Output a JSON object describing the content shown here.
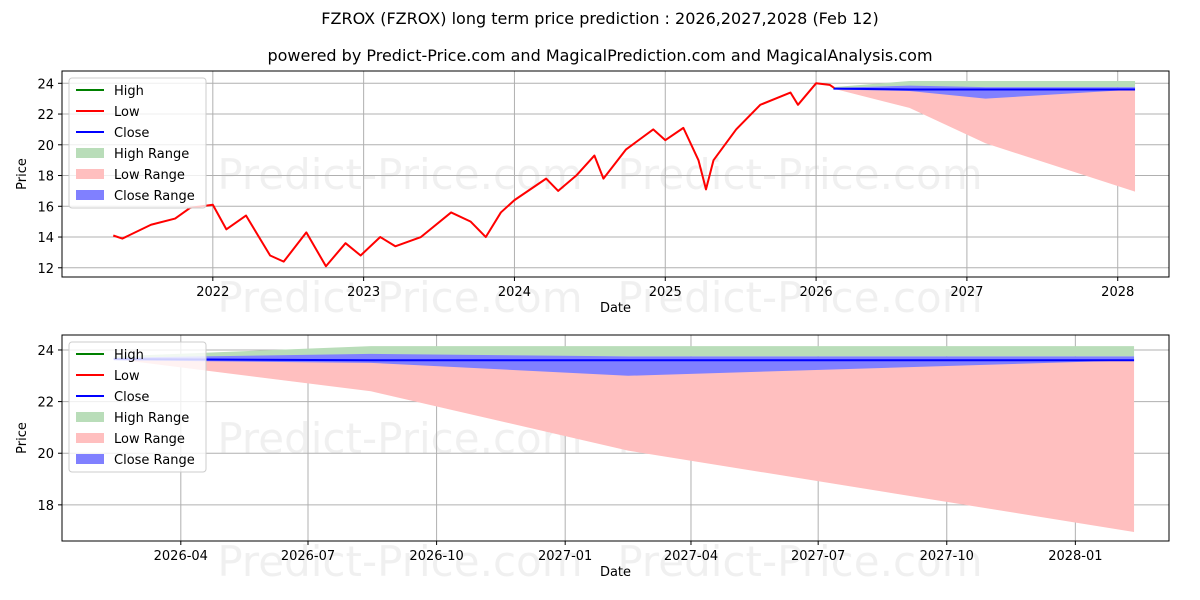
{
  "title": "FZROX (FZROX) long term price prediction : 2026,2027,2028 (Feb 12)",
  "subtitle": "powered by Predict-Price.com and MagicalPrediction.com and MagicalAnalysis.com",
  "watermark": "Predict-Price.com",
  "colors": {
    "high": "#008000",
    "low": "#ff0000",
    "close": "#0000ff",
    "high_range": "#b9ddb9",
    "low_range": "#ffbfbf",
    "close_range": "#8080ff"
  },
  "chart_data": [
    {
      "type": "line",
      "name": "top-chart",
      "xlabel": "Date",
      "ylabel": "Price",
      "ylim": [
        11.4,
        24.8
      ],
      "xlim": [
        2021.0,
        2028.34
      ],
      "yticks": [
        12,
        14,
        16,
        18,
        20,
        22,
        24
      ],
      "xticks": [
        {
          "v": 2022,
          "label": "2022"
        },
        {
          "v": 2023,
          "label": "2023"
        },
        {
          "v": 2024,
          "label": "2024"
        },
        {
          "v": 2025,
          "label": "2025"
        },
        {
          "v": 2026,
          "label": "2026"
        },
        {
          "v": 2027,
          "label": "2027"
        },
        {
          "v": 2028,
          "label": "2028"
        }
      ],
      "grid": true,
      "legend": {
        "placement": "top-left",
        "entries": [
          "High",
          "Low",
          "Close",
          "High Range",
          "Low Range",
          "Close Range"
        ]
      },
      "history": {
        "x": [
          2021.34,
          2021.4,
          2021.59,
          2021.75,
          2021.85,
          2022.0,
          2022.09,
          2022.22,
          2022.38,
          2022.47,
          2022.62,
          2022.75,
          2022.88,
          2022.98,
          2023.11,
          2023.21,
          2023.38,
          2023.58,
          2023.71,
          2023.81,
          2023.91,
          2024.0,
          2024.21,
          2024.29,
          2024.41,
          2024.53,
          2024.59,
          2024.74,
          2024.92,
          2025.0,
          2025.12,
          2025.22,
          2025.27,
          2025.32,
          2025.47,
          2025.63,
          2025.83,
          2025.88,
          2026.0,
          2026.09,
          2026.12
        ],
        "low": [
          14.1,
          13.9,
          14.8,
          15.2,
          15.9,
          16.1,
          14.5,
          15.4,
          12.8,
          12.4,
          14.3,
          12.1,
          13.6,
          12.8,
          14.0,
          13.4,
          14.0,
          15.6,
          15.0,
          14.0,
          15.6,
          16.4,
          17.8,
          17.0,
          18.0,
          19.3,
          17.8,
          19.7,
          21.0,
          20.3,
          21.1,
          19.0,
          17.1,
          19.0,
          21.0,
          22.6,
          23.4,
          22.6,
          24.0,
          23.9,
          23.7
        ]
      }
    },
    {
      "type": "area",
      "name": "bottom-chart",
      "xlabel": "Date",
      "ylabel": "Price",
      "ylim": [
        16.6,
        24.58
      ],
      "xlim": [
        "2026-01-06",
        "2028-03-08"
      ],
      "yticks": [
        18,
        20,
        22,
        24
      ],
      "xticks": [
        "2026-04",
        "2026-07",
        "2026-10",
        "2027-01",
        "2027-04",
        "2027-07",
        "2027-10",
        "2028-01"
      ],
      "grid": true,
      "legend": {
        "placement": "top-left",
        "entries": [
          "High",
          "Low",
          "Close",
          "High Range",
          "Low Range",
          "Close Range"
        ]
      }
    }
  ],
  "prediction": {
    "dates": [
      "2026-02-12",
      "2026-08-15",
      "2027-02-15",
      "2028-02-12"
    ],
    "close": [
      23.65,
      23.6,
      23.6,
      23.6
    ],
    "high_range": {
      "upper": [
        23.75,
        24.15,
        24.15,
        24.15
      ],
      "lower": [
        23.65,
        23.75,
        23.75,
        23.75
      ]
    },
    "close_range": {
      "upper": [
        23.7,
        23.85,
        23.75,
        23.75
      ],
      "lower": [
        23.6,
        23.5,
        23.0,
        23.6
      ]
    },
    "low_range": {
      "upper": [
        23.65,
        23.6,
        23.6,
        23.6
      ],
      "lower": [
        23.65,
        22.4,
        20.1,
        16.95
      ]
    }
  }
}
